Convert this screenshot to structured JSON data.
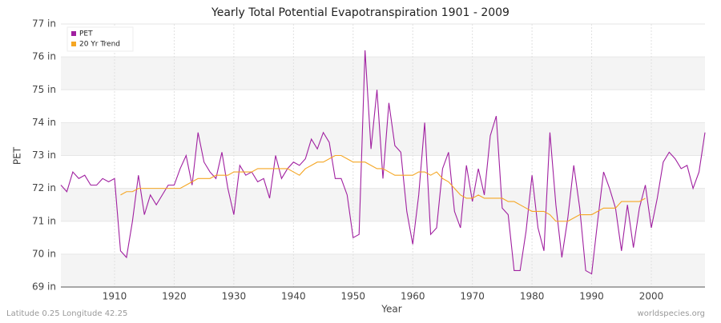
{
  "chart_data": {
    "type": "line",
    "title": "Yearly Total Potential Evapotranspiration 1901 - 2009",
    "x_label": "Year",
    "y_label": "PET",
    "footer_left": "Latitude 0.25 Longitude 42.25",
    "footer_right": "worldspecies.org",
    "x": [
      1901,
      1902,
      1903,
      1904,
      1905,
      1906,
      1907,
      1908,
      1909,
      1910,
      1911,
      1912,
      1913,
      1914,
      1915,
      1916,
      1917,
      1918,
      1919,
      1920,
      1921,
      1922,
      1923,
      1924,
      1925,
      1926,
      1927,
      1928,
      1929,
      1930,
      1931,
      1932,
      1933,
      1934,
      1935,
      1936,
      1937,
      1938,
      1939,
      1940,
      1941,
      1942,
      1943,
      1944,
      1945,
      1946,
      1947,
      1948,
      1949,
      1950,
      1951,
      1952,
      1953,
      1954,
      1955,
      1956,
      1957,
      1958,
      1959,
      1960,
      1961,
      1962,
      1963,
      1964,
      1965,
      1966,
      1967,
      1968,
      1969,
      1970,
      1971,
      1972,
      1973,
      1974,
      1975,
      1976,
      1977,
      1978,
      1979,
      1980,
      1981,
      1982,
      1983,
      1984,
      1985,
      1986,
      1987,
      1988,
      1989,
      1990,
      1991,
      1992,
      1993,
      1994,
      1995,
      1996,
      1997,
      1998,
      1999,
      2000,
      2001,
      2002,
      2003,
      2004,
      2005,
      2006,
      2007,
      2008,
      2009
    ],
    "series": [
      {
        "name": "PET",
        "color": "#a020a0",
        "values": [
          72.1,
          71.9,
          72.5,
          72.3,
          72.4,
          72.1,
          72.1,
          72.3,
          72.2,
          72.3,
          70.1,
          69.9,
          71.0,
          72.4,
          71.2,
          71.8,
          71.5,
          71.8,
          72.1,
          72.1,
          72.6,
          73.0,
          72.1,
          73.7,
          72.8,
          72.5,
          72.3,
          73.1,
          72.0,
          71.2,
          72.7,
          72.4,
          72.5,
          72.2,
          72.3,
          71.7,
          73.0,
          72.3,
          72.6,
          72.8,
          72.7,
          72.9,
          73.5,
          73.2,
          73.7,
          73.4,
          72.3,
          72.3,
          71.8,
          70.5,
          70.6,
          76.2,
          73.2,
          75.0,
          72.3,
          74.6,
          73.3,
          73.1,
          71.3,
          70.3,
          71.8,
          74.0,
          70.6,
          70.8,
          72.6,
          73.1,
          71.3,
          70.8,
          72.7,
          71.6,
          72.6,
          71.8,
          73.6,
          74.2,
          71.4,
          71.2,
          69.5,
          69.5,
          70.7,
          72.4,
          70.8,
          70.1,
          73.7,
          71.5,
          69.9,
          71.1,
          72.7,
          71.4,
          69.5,
          69.4,
          71.0,
          72.5,
          72.0,
          71.4,
          70.1,
          71.5,
          70.2,
          71.4,
          72.1,
          70.8,
          71.7,
          72.8,
          73.1,
          72.9,
          72.6,
          72.7,
          72.0,
          72.5,
          73.7
        ]
      },
      {
        "name": "20 Yr Trend",
        "color": "#f5a623",
        "values": [
          null,
          null,
          null,
          null,
          null,
          null,
          null,
          null,
          null,
          null,
          71.8,
          71.9,
          71.9,
          72.0,
          72.0,
          72.0,
          72.0,
          72.0,
          72.0,
          72.0,
          72.0,
          72.1,
          72.2,
          72.3,
          72.3,
          72.3,
          72.4,
          72.4,
          72.4,
          72.5,
          72.5,
          72.5,
          72.5,
          72.6,
          72.6,
          72.6,
          72.6,
          72.6,
          72.6,
          72.5,
          72.4,
          72.6,
          72.7,
          72.8,
          72.8,
          72.9,
          73.0,
          73.0,
          72.9,
          72.8,
          72.8,
          72.8,
          72.7,
          72.6,
          72.6,
          72.5,
          72.4,
          72.4,
          72.4,
          72.4,
          72.5,
          72.5,
          72.4,
          72.5,
          72.3,
          72.2,
          72.0,
          71.8,
          71.7,
          71.7,
          71.8,
          71.7,
          71.7,
          71.7,
          71.7,
          71.6,
          71.6,
          71.5,
          71.4,
          71.3,
          71.3,
          71.3,
          71.2,
          71.0,
          71.0,
          71.0,
          71.1,
          71.2,
          71.2,
          71.2,
          71.3,
          71.4,
          71.4,
          71.4,
          71.6,
          71.6,
          71.6,
          71.6,
          71.7,
          null,
          null,
          null,
          null,
          null,
          null,
          null,
          null,
          null,
          null
        ]
      }
    ],
    "xlim": [
      1901,
      2009
    ],
    "xticks": [
      1910,
      1920,
      1930,
      1940,
      1950,
      1960,
      1970,
      1980,
      1990,
      2000
    ],
    "ylim": [
      69,
      77
    ],
    "yticks": [
      {
        "value": 69,
        "label": "69 in"
      },
      {
        "value": 70,
        "label": "70 in"
      },
      {
        "value": 71,
        "label": "71 in"
      },
      {
        "value": 72,
        "label": "72 in"
      },
      {
        "value": 73,
        "label": "73 in"
      },
      {
        "value": 74,
        "label": "74 in"
      },
      {
        "value": 75,
        "label": "75 in"
      },
      {
        "value": 76,
        "label": "76 in"
      },
      {
        "value": 77,
        "label": "77 in"
      }
    ],
    "grid": true,
    "legend_position": "top-left"
  }
}
